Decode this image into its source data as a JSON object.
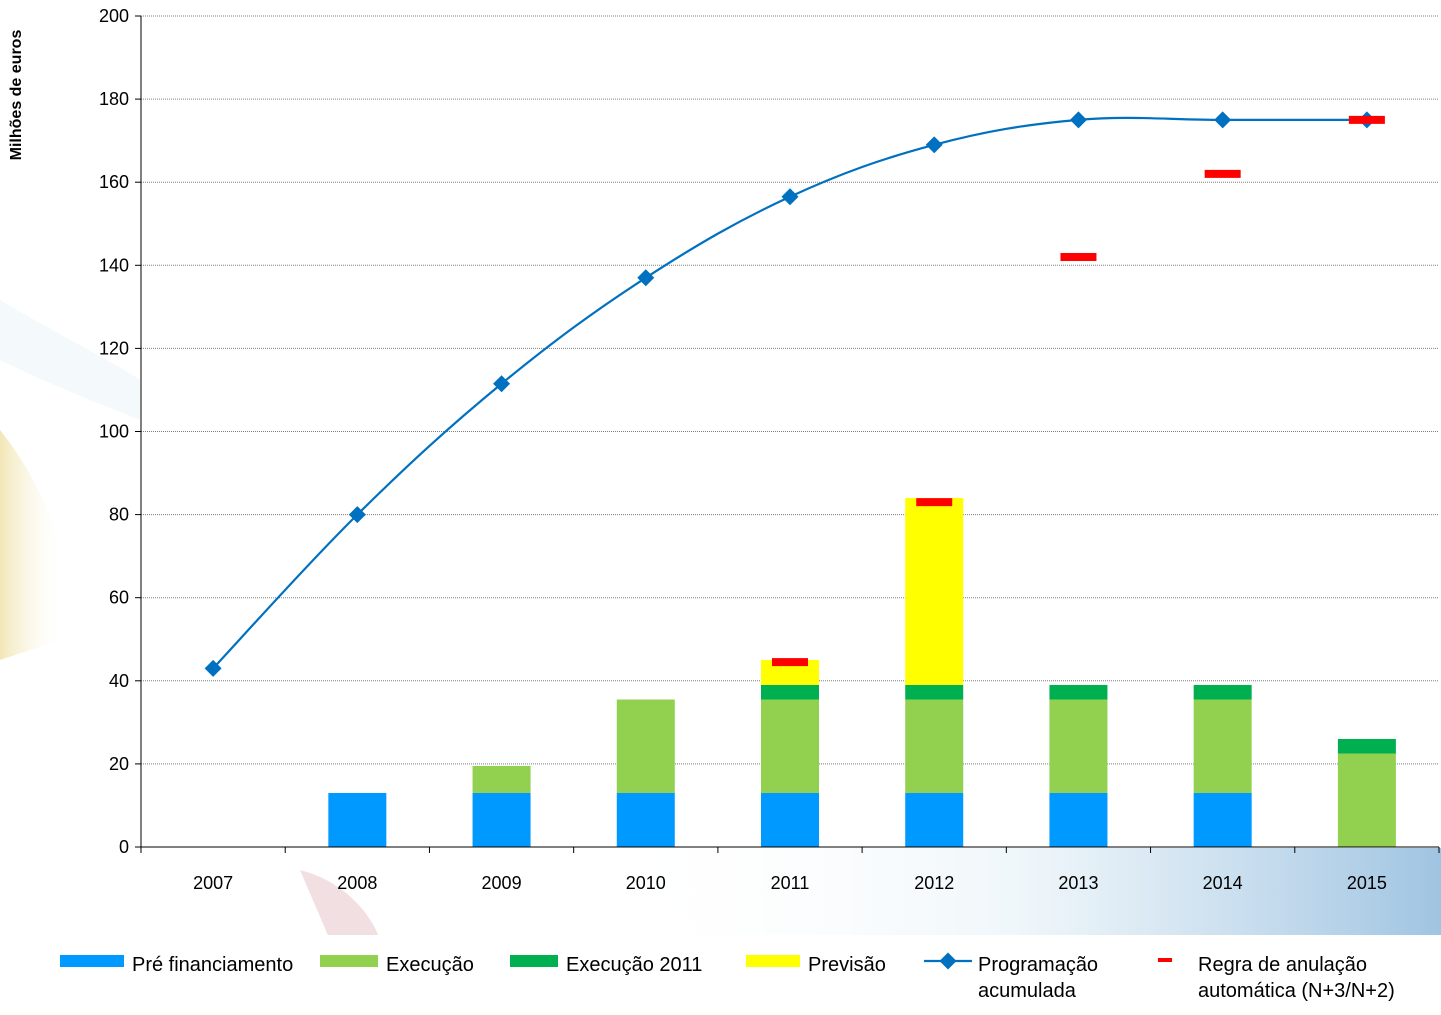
{
  "chart_data": {
    "type": "bar",
    "stacked": true,
    "ylabel": "Milhões de euros",
    "ylim": [
      0,
      200
    ],
    "yticks": [
      0,
      20,
      40,
      60,
      80,
      100,
      120,
      140,
      160,
      180,
      200
    ],
    "grid": true,
    "legend_position": "bottom",
    "categories": [
      "2007",
      "2008",
      "2009",
      "2010",
      "2011",
      "2012",
      "2013",
      "2014",
      "2015"
    ],
    "series": [
      {
        "name": "Pré financiamento",
        "kind": "bar",
        "color": "#0099ff",
        "values": [
          0,
          13,
          13,
          13,
          13,
          13,
          13,
          13,
          0
        ]
      },
      {
        "name": "Execução",
        "kind": "bar",
        "color": "#92d050",
        "values": [
          0,
          0,
          6.5,
          22.5,
          22.5,
          22.5,
          22.5,
          22.5,
          22.5
        ]
      },
      {
        "name": "Execução 2011",
        "kind": "bar",
        "color": "#00b050",
        "values": [
          0,
          0,
          0,
          0,
          3.5,
          3.5,
          3.5,
          3.5,
          3.5
        ]
      },
      {
        "name": "Previsão",
        "kind": "bar",
        "color": "#ffff00",
        "values": [
          0,
          0,
          0,
          0,
          6,
          45,
          0,
          0,
          0
        ]
      },
      {
        "name_lines": [
          "Programação",
          "acumulada"
        ],
        "kind": "line",
        "color": "#0070c0",
        "values": [
          43,
          80,
          111.5,
          137,
          156.5,
          169,
          175,
          175,
          175
        ]
      },
      {
        "name_lines": [
          "Regra de anulação",
          " automática (N+3/N+2)"
        ],
        "kind": "marker",
        "color": "#ff0000",
        "values": [
          null,
          null,
          null,
          null,
          44.5,
          83,
          142,
          162,
          175
        ]
      }
    ]
  }
}
